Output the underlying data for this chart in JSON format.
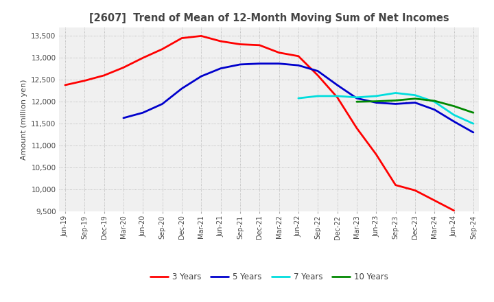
{
  "title": "[2607]  Trend of Mean of 12-Month Moving Sum of Net Incomes",
  "ylabel": "Amount (million yen)",
  "ylim": [
    9500,
    13700
  ],
  "yticks": [
    9500,
    10000,
    10500,
    11000,
    11500,
    12000,
    12500,
    13000,
    13500
  ],
  "background_color": "#ffffff",
  "plot_bg_color": "#f0f0f0",
  "grid_color": "#aaaaaa",
  "x_labels": [
    "Jun-19",
    "Sep-19",
    "Dec-19",
    "Mar-20",
    "Jun-20",
    "Sep-20",
    "Dec-20",
    "Mar-21",
    "Jun-21",
    "Sep-21",
    "Dec-21",
    "Mar-22",
    "Jun-22",
    "Sep-22",
    "Dec-22",
    "Mar-23",
    "Jun-23",
    "Sep-23",
    "Dec-23",
    "Mar-24",
    "Jun-24",
    "Sep-24"
  ],
  "series": {
    "3 Years": {
      "color": "#ff0000",
      "values": [
        12380,
        12480,
        12600,
        12780,
        13000,
        13200,
        13450,
        13500,
        13380,
        13310,
        13290,
        13120,
        13040,
        12600,
        12100,
        11400,
        10800,
        10100,
        9980,
        9750,
        9520,
        null
      ]
    },
    "5 Years": {
      "color": "#0000cc",
      "values": [
        null,
        null,
        null,
        11630,
        11750,
        11950,
        12300,
        12580,
        12760,
        12850,
        12870,
        12870,
        12830,
        12700,
        12380,
        12080,
        11980,
        11950,
        11980,
        11820,
        11550,
        11300
      ]
    },
    "7 Years": {
      "color": "#00dddd",
      "values": [
        null,
        null,
        null,
        null,
        null,
        null,
        null,
        null,
        null,
        null,
        null,
        null,
        12080,
        12130,
        12130,
        12100,
        12130,
        12200,
        12150,
        12000,
        11700,
        11500
      ]
    },
    "10 Years": {
      "color": "#008800",
      "values": [
        null,
        null,
        null,
        null,
        null,
        null,
        null,
        null,
        null,
        null,
        null,
        null,
        null,
        null,
        null,
        12000,
        12010,
        12030,
        12070,
        12020,
        11900,
        11750
      ]
    }
  },
  "legend_order": [
    "3 Years",
    "5 Years",
    "7 Years",
    "10 Years"
  ]
}
